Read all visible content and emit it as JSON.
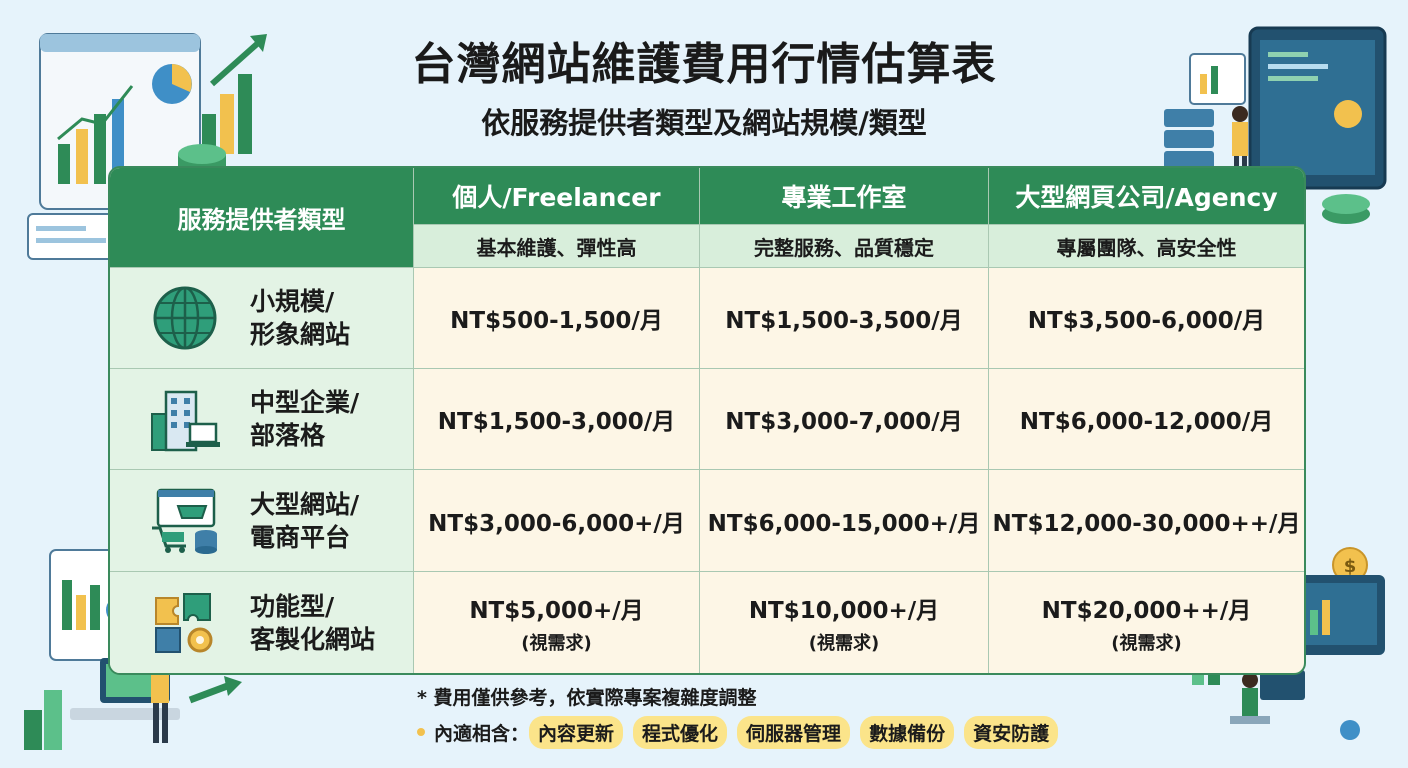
{
  "header": {
    "title": "台灣網站維護費用行情估算表",
    "subtitle": "依服務提供者類型及網站規模/類型"
  },
  "table": {
    "corner_label": "服務提供者類型",
    "providers": [
      {
        "name": "個人/Freelancer",
        "desc": "基本維護、彈性高"
      },
      {
        "name": "專業工作室",
        "desc": "完整服務、品質穩定"
      },
      {
        "name": "大型網頁公司/Agency",
        "desc": "專屬團隊、高安全性"
      }
    ],
    "rows": [
      {
        "icon": "globe-icon",
        "label": "小規模/\n形象網站",
        "prices": [
          {
            "text": "NT$500-1,500/月"
          },
          {
            "text": "NT$1,500-3,500/月"
          },
          {
            "text": "NT$3,500-6,000/月"
          }
        ]
      },
      {
        "icon": "office-building-icon",
        "label": "中型企業/\n部落格",
        "prices": [
          {
            "text": "NT$1,500-3,000/月"
          },
          {
            "text": "NT$3,000-7,000/月"
          },
          {
            "text": "NT$6,000-12,000/月"
          }
        ]
      },
      {
        "icon": "shopping-cart-icon",
        "label": "大型網站/\n電商平台",
        "prices": [
          {
            "text": "NT$3,000-6,000+/月"
          },
          {
            "text": "NT$6,000-15,000+/月"
          },
          {
            "text": "NT$12,000-30,000++/月"
          }
        ]
      },
      {
        "icon": "puzzle-gear-icon",
        "label": "功能型/\n客製化網站",
        "prices": [
          {
            "text": "NT$5,000+/月",
            "note": "(視需求)"
          },
          {
            "text": "NT$10,000+/月",
            "note": "(視需求)"
          },
          {
            "text": "NT$20,000++/月",
            "note": "(視需求)"
          }
        ]
      }
    ]
  },
  "footer": {
    "footnote": "* 費用僅供參考，依實際專案複雜度調整",
    "includes_label": "內適相含：",
    "includes": [
      "內容更新",
      "程式優化",
      "伺服器管理",
      "數據備份",
      "資安防護"
    ]
  },
  "decor": {
    "nts_sign": "NT$"
  },
  "colors": {
    "header_green": "#2e8b57",
    "subheader_green": "#d8eedb",
    "rowhead_green": "#e3f3e5",
    "price_cream": "#fdf6e6",
    "tag_yellow": "#fbe48a",
    "background": "#e6f3fb"
  }
}
